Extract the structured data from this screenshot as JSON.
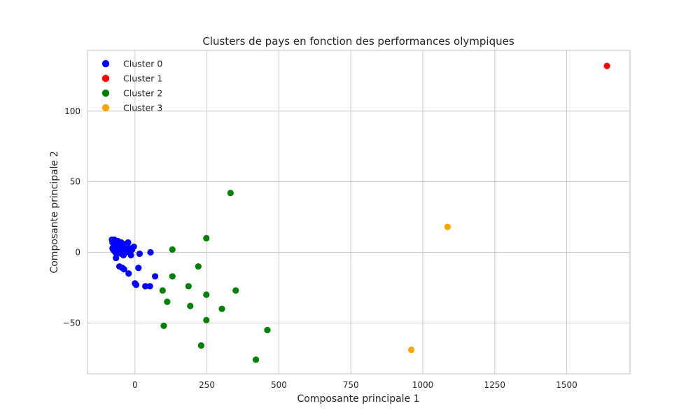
{
  "chart_data": {
    "type": "scatter",
    "title": "Clusters de pays en fonction des performances olympiques",
    "xlabel": "Composante principale 1",
    "ylabel": "Composante principale 2",
    "xlim": [
      -165,
      1720
    ],
    "ylim": [
      -86,
      143
    ],
    "xticks": [
      0,
      250,
      500,
      750,
      1000,
      1250,
      1500
    ],
    "yticks": [
      -50,
      0,
      50,
      100
    ],
    "xtick_labels": [
      "0",
      "250",
      "500",
      "750",
      "1000",
      "1250",
      "1500"
    ],
    "ytick_labels": [
      "−50",
      "0",
      "50",
      "100"
    ],
    "grid": true,
    "legend_position": "top-left",
    "series": [
      {
        "name": "Cluster 0",
        "color": "#0000ff",
        "points": [
          [
            -80,
            9
          ],
          [
            -78,
            7
          ],
          [
            -76,
            8
          ],
          [
            -74,
            6
          ],
          [
            -72,
            9
          ],
          [
            -70,
            7
          ],
          [
            -68,
            8
          ],
          [
            -66,
            6
          ],
          [
            -64,
            7
          ],
          [
            -62,
            5
          ],
          [
            -60,
            8
          ],
          [
            -58,
            6
          ],
          [
            -56,
            7
          ],
          [
            -54,
            5
          ],
          [
            -52,
            6
          ],
          [
            -50,
            4
          ],
          [
            -48,
            7
          ],
          [
            -46,
            5
          ],
          [
            -44,
            3
          ],
          [
            -42,
            6
          ],
          [
            -40,
            4
          ],
          [
            -78,
            3
          ],
          [
            -76,
            2
          ],
          [
            -74,
            4
          ],
          [
            -72,
            1
          ],
          [
            -70,
            3
          ],
          [
            -68,
            0
          ],
          [
            -66,
            2
          ],
          [
            -64,
            -1
          ],
          [
            -62,
            1
          ],
          [
            -60,
            3
          ],
          [
            -56,
            0
          ],
          [
            -52,
            2
          ],
          [
            -48,
            -1
          ],
          [
            -44,
            1
          ],
          [
            -40,
            -2
          ],
          [
            -36,
            3
          ],
          [
            -32,
            0
          ],
          [
            -28,
            1
          ],
          [
            -24,
            7
          ],
          [
            -20,
            3
          ],
          [
            -14,
            -2
          ],
          [
            -4,
            4
          ],
          [
            -10,
            2
          ],
          [
            16,
            -1
          ],
          [
            54,
            0
          ],
          [
            -66,
            -4
          ],
          [
            -54,
            -10
          ],
          [
            -44,
            -11
          ],
          [
            -38,
            -12
          ],
          [
            -22,
            -15
          ],
          [
            12,
            -11
          ],
          [
            70,
            -17
          ],
          [
            0,
            -22
          ],
          [
            4,
            -23
          ],
          [
            36,
            -24
          ],
          [
            52,
            -24
          ]
        ]
      },
      {
        "name": "Cluster 1",
        "color": "#ff0000",
        "points": [
          [
            1640,
            132
          ]
        ]
      },
      {
        "name": "Cluster 2",
        "color": "#008000",
        "points": [
          [
            332,
            42
          ],
          [
            248,
            10
          ],
          [
            130,
            2
          ],
          [
            220,
            -10
          ],
          [
            130,
            -17
          ],
          [
            186,
            -24
          ],
          [
            350,
            -27
          ],
          [
            96,
            -27
          ],
          [
            248,
            -30
          ],
          [
            112,
            -35
          ],
          [
            192,
            -38
          ],
          [
            302,
            -40
          ],
          [
            248,
            -48
          ],
          [
            100,
            -52
          ],
          [
            460,
            -55
          ],
          [
            230,
            -66
          ],
          [
            420,
            -76
          ]
        ]
      },
      {
        "name": "Cluster 3",
        "color": "#ffa500",
        "points": [
          [
            1086,
            18
          ],
          [
            960,
            -69
          ]
        ]
      }
    ]
  }
}
